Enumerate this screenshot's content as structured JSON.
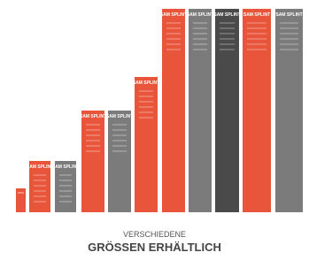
{
  "splint_label": "SAM SPLINT",
  "caption": {
    "line1": "VERSCHIEDENE",
    "line2": "GRÖSSEN ERHÄLTLICH"
  }
}
